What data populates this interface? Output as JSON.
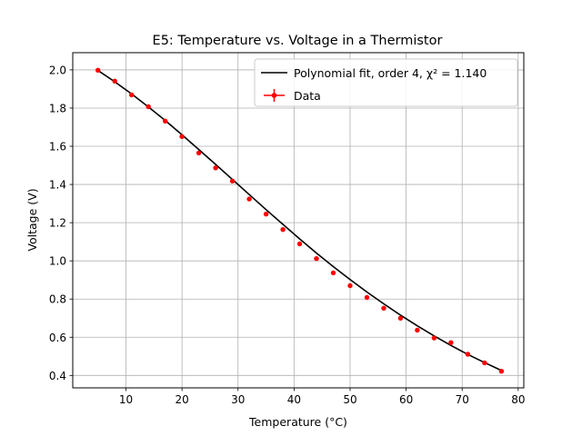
{
  "chart_data": {
    "type": "line",
    "title": "E5: Temperature vs. Voltage in a Thermistor",
    "xlabel": "Temperature (°C)",
    "ylabel": "Voltage (V)",
    "xlim": [
      0.5,
      81
    ],
    "ylim": [
      0.335,
      2.09
    ],
    "xticks": [
      10,
      20,
      30,
      40,
      50,
      60,
      70,
      80
    ],
    "yticks": [
      0.4,
      0.6,
      0.8,
      1.0,
      1.2,
      1.4,
      1.6,
      1.8,
      2.0
    ],
    "grid": true,
    "legend_position": "top-right",
    "series": [
      {
        "name": "Polynomial fit, order 4, χ² =  1.140",
        "kind": "fit-line",
        "color": "#000000",
        "x": [
          5,
          8,
          11,
          14,
          17,
          20,
          23,
          26,
          29,
          32,
          35,
          38,
          41,
          44,
          47,
          50,
          53,
          56,
          59,
          62,
          65,
          68,
          71,
          74,
          77
        ],
        "y": [
          1.997,
          1.938,
          1.874,
          1.806,
          1.735,
          1.66,
          1.583,
          1.505,
          1.426,
          1.347,
          1.268,
          1.191,
          1.115,
          1.041,
          0.97,
          0.902,
          0.837,
          0.775,
          0.716,
          0.66,
          0.607,
          0.557,
          0.51,
          0.467,
          0.426
        ]
      },
      {
        "name": "Data",
        "kind": "points-with-errorbars",
        "color": "#ff0000",
        "x": [
          5,
          8,
          11,
          14,
          17,
          20,
          23,
          26,
          29,
          32,
          35,
          38,
          41,
          44,
          47,
          50,
          53,
          56,
          59,
          62,
          65,
          68,
          71,
          74,
          77
        ],
        "y": [
          1.998,
          1.941,
          1.869,
          1.807,
          1.732,
          1.651,
          1.565,
          1.487,
          1.418,
          1.324,
          1.245,
          1.164,
          1.089,
          1.012,
          0.937,
          0.87,
          0.808,
          0.752,
          0.7,
          0.637,
          0.596,
          0.572,
          0.511,
          0.466,
          0.422
        ]
      }
    ]
  }
}
